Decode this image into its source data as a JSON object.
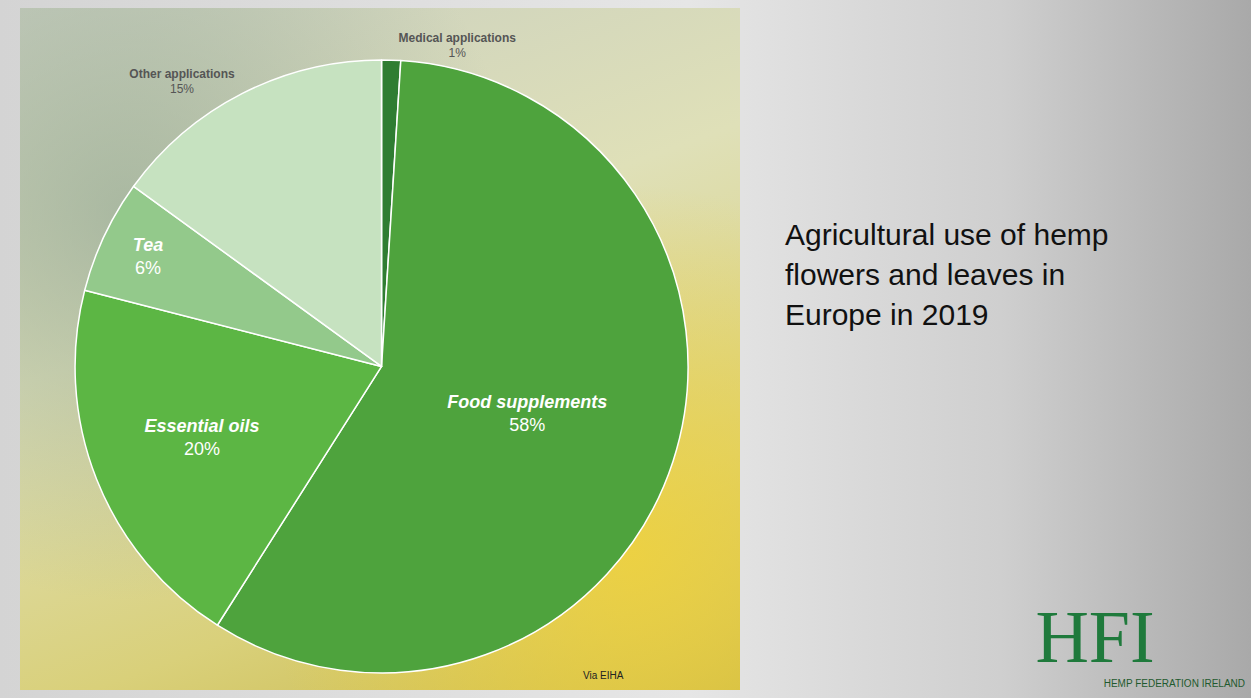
{
  "chart_data": {
    "type": "pie",
    "title": "Agricultural use of hemp flowers and leaves in Europe in 2019",
    "categories": [
      "Medical applications",
      "Food supplements",
      "Essential oils",
      "Tea",
      "Other applications"
    ],
    "values": [
      1,
      58,
      20,
      6,
      15
    ],
    "value_labels": [
      "1%",
      "58%",
      "20%",
      "6%",
      "15%"
    ],
    "data_labels": true,
    "colors": [
      "#2f7d32",
      "#4ea33d",
      "#5cb644",
      "#93c98b",
      "#c6e2c0"
    ],
    "annotations": [
      "Via EIHA",
      "HFI",
      "HEMP FEDERATION IRELAND"
    ]
  }
}
